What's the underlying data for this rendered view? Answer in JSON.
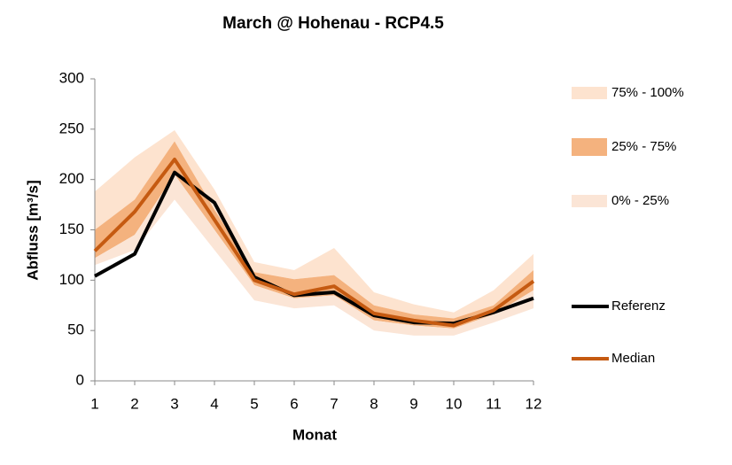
{
  "chart_data": {
    "type": "line",
    "title": "March @ Hohenau - RCP4.5",
    "x_label": "Monat",
    "y_label": "Abfluss [m³/s]",
    "x": [
      1,
      2,
      3,
      4,
      5,
      6,
      7,
      8,
      9,
      10,
      11,
      12
    ],
    "xlim": [
      1,
      12
    ],
    "xticks": [
      1,
      2,
      3,
      4,
      5,
      6,
      7,
      8,
      9,
      10,
      11,
      12
    ],
    "ylim": [
      0,
      300
    ],
    "yticks": [
      0,
      50,
      100,
      150,
      200,
      250,
      300
    ],
    "bands": [
      {
        "name": "75% - 100%",
        "color": "#fde3cf",
        "low": [
          150,
          180,
          238,
          170,
          108,
          101,
          105,
          75,
          66,
          62,
          75,
          110
        ],
        "high": [
          188,
          222,
          249,
          190,
          118,
          110,
          132,
          88,
          76,
          68,
          90,
          126
        ]
      },
      {
        "name": "25% - 75%",
        "color": "#f4b27e",
        "low": [
          122,
          145,
          205,
          150,
          95,
          82,
          85,
          60,
          55,
          52,
          66,
          90
        ],
        "high": [
          150,
          180,
          238,
          170,
          108,
          101,
          105,
          75,
          66,
          62,
          75,
          110
        ]
      },
      {
        "name": "0% - 25%",
        "color": "#fbe5d6",
        "low": [
          115,
          130,
          180,
          130,
          80,
          72,
          75,
          50,
          45,
          45,
          58,
          72
        ],
        "high": [
          122,
          145,
          205,
          150,
          95,
          82,
          85,
          60,
          55,
          52,
          66,
          90
        ]
      }
    ],
    "series": [
      {
        "name": "Referenz",
        "color": "#000000",
        "values": [
          104,
          126,
          207,
          177,
          103,
          85,
          88,
          65,
          58,
          57,
          68,
          82
        ]
      },
      {
        "name": "Median",
        "color": "#c55a11",
        "values": [
          129,
          168,
          220,
          160,
          100,
          86,
          94,
          67,
          60,
          55,
          70,
          99
        ]
      }
    ]
  }
}
